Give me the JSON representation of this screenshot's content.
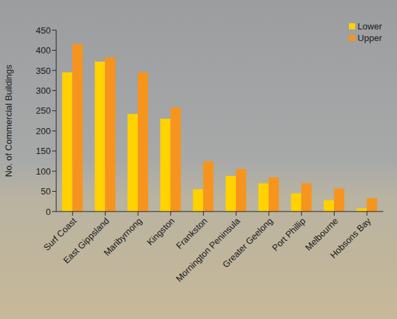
{
  "chart_data": {
    "type": "bar",
    "y_label": "No. of Commercial Buildings",
    "categories": [
      "Surf Coast",
      "East Gippsland",
      "Maribyrnong",
      "Kingston",
      "Frankston",
      "Mornington Peninsula",
      "Greater Geelong",
      "Port Phillip",
      "Melbourne",
      "Hobsons Bay"
    ],
    "series": [
      {
        "name": "Lower",
        "color": "#ffd200",
        "values": [
          345,
          372,
          242,
          230,
          55,
          88,
          70,
          45,
          28,
          8
        ]
      },
      {
        "name": "Upper",
        "color": "#f7941d",
        "values": [
          415,
          382,
          345,
          258,
          125,
          105,
          85,
          70,
          57,
          33
        ]
      }
    ],
    "ylim": [
      0,
      450
    ],
    "yticks": [
      0,
      50,
      100,
      150,
      200,
      250,
      300,
      350,
      400,
      450
    ],
    "grid": false,
    "legend": "top-right"
  }
}
